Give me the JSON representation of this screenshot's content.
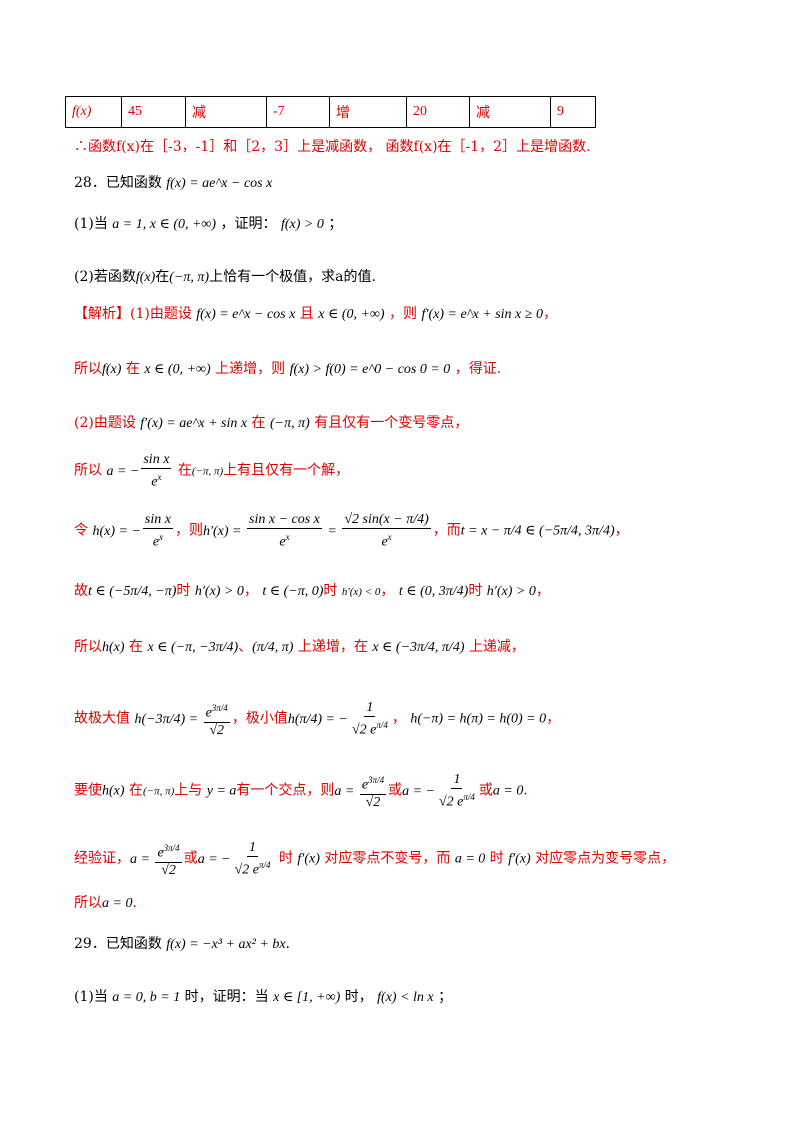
{
  "table": {
    "cells": [
      "f(x)",
      "45",
      "减",
      "-7",
      "增",
      "20",
      "减",
      "9"
    ]
  },
  "conclusion": "∴函数f(x)在［-3，-1］和［2，3］上是减函数， 函数f(x)在［-1，2］上是增函数.",
  "p28": {
    "intro": "28．已知函数",
    "intro_formula": "f(x) = ae^x − cos x",
    "q1_prefix": "(1)当",
    "q1_cond": "a = 1, x ∈ (0, +∞)",
    "q1_mid": "，证明：",
    "q1_claim": "f(x) > 0",
    "q1_end": "；",
    "q2_prefix": "(2)若函数",
    "q2_f": "f(x)",
    "q2_in": "在",
    "q2_interval": "(−π, π)",
    "q2_rest": "上恰有一个极值，求a的值.",
    "sol_tag": "【解析】",
    "sol1_a": "(1)由题设",
    "sol1_f": "f(x) = e^x − cos x",
    "sol1_and": "且",
    "sol1_x": "x ∈ (0, +∞)",
    "sol1_then": "，则",
    "sol1_fp": "f′(x) = e^x + sin x ≥ 0",
    "sol1_tail": "，",
    "sol2_a": "所以",
    "sol2_f": "f(x)",
    "sol2_in": "在",
    "sol2_x": "x ∈ (0, +∞)",
    "sol2_mid": "上递增，则",
    "sol2_ineq": "f(x) > f(0) = e^0 − cos 0 = 0",
    "sol2_end": "，得证.",
    "sol3_a": "(2)由题设",
    "sol3_fp": "f′(x) = ae^x + sin x",
    "sol3_in": "在",
    "sol3_iv": "(−π, π)",
    "sol3_end": "有且仅有一个变号零点，",
    "sol4_a": "所以",
    "sol4_in": "在",
    "sol4_iv": "(−π, π)",
    "sol4_end": "上有且仅有一个解，",
    "sol5_a": "令",
    "sol5_then": "，则",
    "sol5_and": "，而",
    "sol5_end": "，",
    "sol6_a": "故",
    "sol6_t1": "时",
    "sol6_t2": "时",
    "sol6_t3": "时",
    "sol6_c1": "h′(x) > 0",
    "sol6_c2": "h′(x) < 0",
    "sol6_c3": "h′(x) > 0",
    "sol6_end": "，",
    "sol7_a": "所以",
    "sol7_h": "h(x)",
    "sol7_in": "在",
    "sol7_sep": "、",
    "sol7_inc": "上递增，在",
    "sol7_dec": "上递减，",
    "sol8_a": "故极大值",
    "sol8_mid": "，极小值",
    "sol8_vals": "h(−π) = h(π) = h(0) = 0",
    "sol8_end": "，",
    "sol9_a": "要使",
    "sol9_h": "h(x)",
    "sol9_in": "在",
    "sol9_iv": "(−π, π)",
    "sol9_with": "上与",
    "sol9_y": "y = a",
    "sol9_one": "有一个交点，则",
    "sol9_or": "或",
    "sol9_a0": "a = 0",
    "sol9_end": ".",
    "sol10_a": "经验证，",
    "sol10_or": "或",
    "sol10_when": "时",
    "sol10_fp": "f′(x)",
    "sol10_mid": "对应零点不变号，而",
    "sol10_a0": "a = 0",
    "sol10_when2": "时",
    "sol10_end": "对应零点为变号零点，",
    "sol11_a": "所以",
    "sol11_v": "a = 0",
    "sol11_end": "."
  },
  "p29": {
    "intro": "29．已知函数",
    "formula": "f(x) = −x³ + ax² + bx",
    "intro_end": ".",
    "q1_prefix": "(1)当",
    "q1_cond": "a = 0, b = 1",
    "q1_mid": "时，证明：当",
    "q1_x": "x ∈ [1, +∞)",
    "q1_when": "时，",
    "q1_claim": "f(x) < ln x",
    "q1_end": "；"
  }
}
